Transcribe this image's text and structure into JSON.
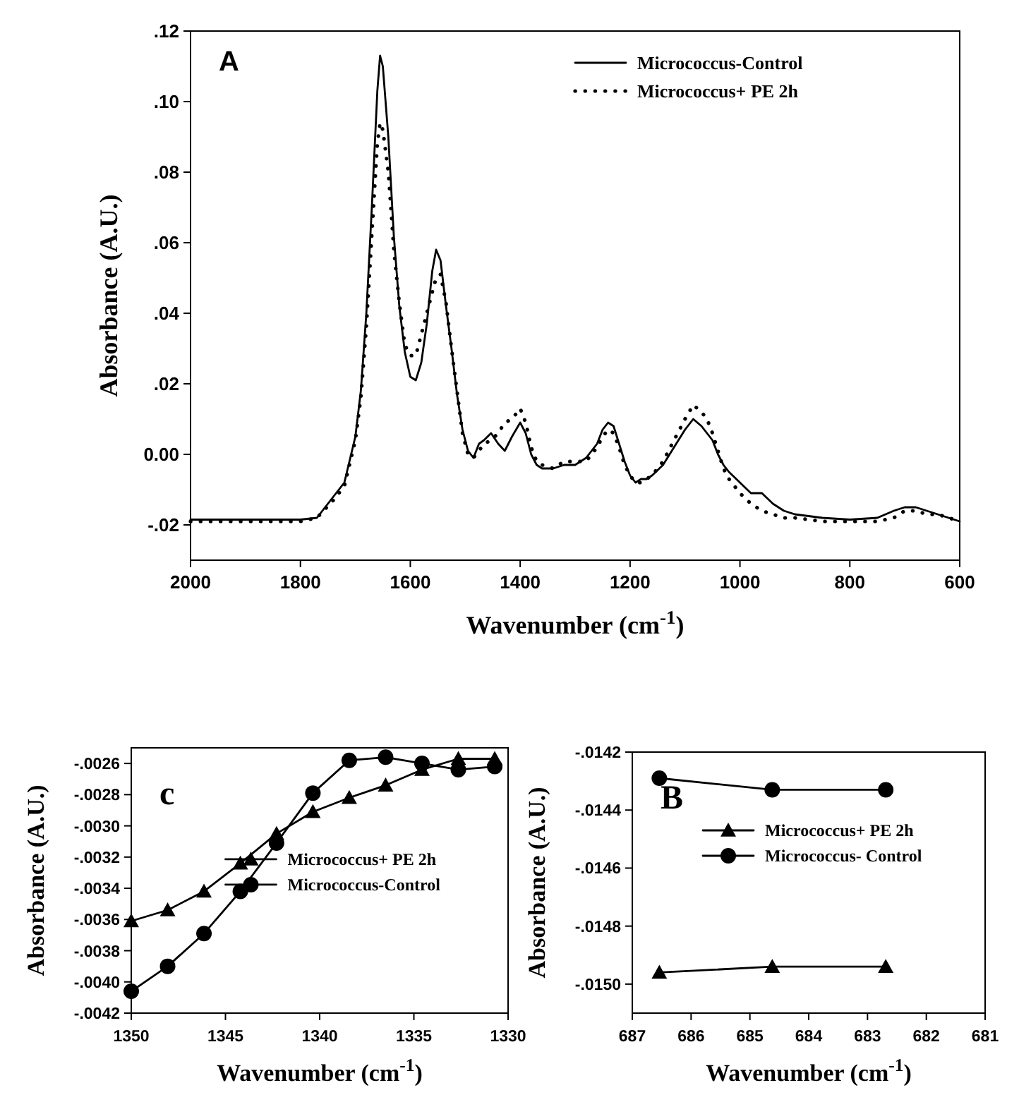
{
  "chart_data": [
    {
      "type": "line",
      "xlabel": "Wavenumber (cm$^{-1}$)",
      "ylabel": "Absorbance (A.U.)",
      "annotations": [
        "A"
      ],
      "legend": "top right",
      "xlim": [
        2000,
        600
      ],
      "ylim": [
        -0.03,
        0.12
      ],
      "xticks": [
        2000,
        1800,
        1600,
        1400,
        1200,
        1000,
        800,
        600
      ],
      "yticks": [
        {
          "value": -0.02,
          "label": "-.02"
        },
        {
          "value": 0,
          "label": "0.00"
        },
        {
          "value": 0.02,
          "label": ".02"
        },
        {
          "value": 0.04,
          "label": ".04"
        },
        {
          "value": 0.06,
          "label": ".06"
        },
        {
          "value": 0.08,
          "label": ".08"
        },
        {
          "value": 0.1,
          "label": ".10"
        },
        {
          "value": 0.12,
          "label": ".12"
        }
      ],
      "x": [
        2000,
        1900,
        1800,
        1770,
        1740,
        1720,
        1700,
        1690,
        1680,
        1670,
        1660,
        1655,
        1650,
        1640,
        1630,
        1620,
        1610,
        1600,
        1590,
        1580,
        1570,
        1560,
        1553,
        1545,
        1535,
        1525,
        1515,
        1505,
        1495,
        1485,
        1475,
        1466,
        1453,
        1440,
        1428,
        1415,
        1400,
        1390,
        1380,
        1370,
        1360,
        1340,
        1320,
        1300,
        1280,
        1260,
        1250,
        1240,
        1230,
        1220,
        1210,
        1200,
        1190,
        1180,
        1170,
        1160,
        1140,
        1120,
        1100,
        1085,
        1070,
        1060,
        1050,
        1040,
        1030,
        1020,
        1000,
        980,
        970,
        960,
        940,
        920,
        900,
        850,
        800,
        750,
        720,
        700,
        680,
        660,
        640,
        620,
        600
      ],
      "series": [
        {
          "name": "Micrococcus-Control",
          "color": "#000000",
          "line_style": "solid",
          "marker": "none",
          "values": [
            -0.0185,
            -0.0185,
            -0.0185,
            -0.018,
            -0.012,
            -0.008,
            0.005,
            0.018,
            0.04,
            0.07,
            0.103,
            0.113,
            0.11,
            0.09,
            0.062,
            0.042,
            0.029,
            0.022,
            0.021,
            0.026,
            0.037,
            0.052,
            0.058,
            0.055,
            0.042,
            0.03,
            0.017,
            0.007,
            0.001,
            -0.001,
            0.003,
            0.004,
            0.006,
            0.003,
            0.001,
            0.005,
            0.009,
            0.006,
            0,
            -0.003,
            -0.004,
            -0.004,
            -0.003,
            -0.003,
            -0.001,
            0.003,
            0.007,
            0.009,
            0.008,
            0.003,
            -0.002,
            -0.006,
            -0.008,
            -0.007,
            -0.007,
            -0.006,
            -0.003,
            0.002,
            0.007,
            0.01,
            0.008,
            0.006,
            0.004,
            0,
            -0.003,
            -0.005,
            -0.008,
            -0.011,
            -0.011,
            -0.011,
            -0.014,
            -0.016,
            -0.017,
            -0.018,
            -0.0185,
            -0.018,
            -0.016,
            -0.015,
            -0.015,
            -0.016,
            -0.017,
            -0.018,
            -0.019
          ]
        },
        {
          "name": "Micrococcus+ PE 2h",
          "color": "#000000",
          "line_style": "dotted",
          "marker": "none",
          "values": [
            -0.019,
            -0.019,
            -0.019,
            -0.018,
            -0.013,
            -0.009,
            0.004,
            0.016,
            0.036,
            0.062,
            0.088,
            0.094,
            0.092,
            0.08,
            0.058,
            0.043,
            0.031,
            0.028,
            0.028,
            0.034,
            0.04,
            0.046,
            0.05,
            0.051,
            0.043,
            0.03,
            0.018,
            0.006,
            0,
            -0.001,
            0.001,
            0.003,
            0.004,
            0.006,
            0.009,
            0.01,
            0.013,
            0.009,
            0.002,
            -0.002,
            -0.003,
            -0.004,
            -0.002,
            -0.002,
            -0.002,
            0.002,
            0.005,
            0.007,
            0.006,
            0.002,
            -0.003,
            -0.006,
            -0.008,
            -0.008,
            -0.007,
            -0.006,
            -0.002,
            0.004,
            0.01,
            0.014,
            0.012,
            0.01,
            0.006,
            0.001,
            -0.004,
            -0.007,
            -0.011,
            -0.014,
            -0.015,
            -0.016,
            -0.017,
            -0.018,
            -0.018,
            -0.019,
            -0.019,
            -0.019,
            -0.018,
            -0.016,
            -0.016,
            -0.017,
            -0.017,
            -0.018,
            -0.019
          ]
        }
      ]
    },
    {
      "type": "line",
      "xlabel": "Wavenumber (cm$^{-1}$)",
      "ylabel": "Absorbance (A.U.)",
      "annotations": [
        "c"
      ],
      "legend": "right",
      "xlim": [
        1350,
        1330
      ],
      "ylim": [
        -0.0042,
        -0.0025
      ],
      "xticks": [
        1350,
        1345,
        1340,
        1335,
        1330
      ],
      "yticks": [
        {
          "value": -0.0042,
          "label": "-.0042"
        },
        {
          "value": -0.004,
          "label": "-.0040"
        },
        {
          "value": -0.0038,
          "label": "-.0038"
        },
        {
          "value": -0.0036,
          "label": "-.0036"
        },
        {
          "value": -0.0034,
          "label": "-.0034"
        },
        {
          "value": -0.0032,
          "label": "-.0032"
        },
        {
          "value": -0.003,
          "label": "-.0030"
        },
        {
          "value": -0.0028,
          "label": "-.0028"
        },
        {
          "value": -0.0026,
          "label": "-.0026"
        }
      ],
      "x": [
        1350,
        1348.07,
        1346.14,
        1344.21,
        1342.29,
        1340.36,
        1338.43,
        1336.5,
        1334.57,
        1332.64,
        1330.71
      ],
      "series": [
        {
          "name": "Micrococcus+ PE 2h",
          "color": "#000000",
          "line_style": "solid",
          "marker": "triangle",
          "values": [
            -0.00361,
            -0.00354,
            -0.00342,
            -0.00324,
            -0.00305,
            -0.00291,
            -0.00282,
            -0.00274,
            -0.00264,
            -0.00257,
            -0.00257
          ]
        },
        {
          "name": "Micrococcus-Control",
          "color": "#000000",
          "line_style": "solid",
          "marker": "circle",
          "values": [
            -0.00406,
            -0.0039,
            -0.00369,
            -0.00342,
            -0.00311,
            -0.00279,
            -0.00258,
            -0.00256,
            -0.0026,
            -0.00264,
            -0.00262
          ]
        }
      ]
    },
    {
      "type": "line",
      "xlabel": "Wavenumber (cm$^{-1}$)",
      "ylabel": "Absorbance (A.U.)",
      "annotations": [
        "B"
      ],
      "legend": "top",
      "xlim": [
        687,
        681
      ],
      "ylim": [
        -0.0151,
        -0.0142
      ],
      "xticks": [
        687,
        686,
        685,
        684,
        683,
        682,
        681
      ],
      "yticks": [
        {
          "value": -0.015,
          "label": "-.0150"
        },
        {
          "value": -0.0148,
          "label": "-.0148"
        },
        {
          "value": -0.0146,
          "label": "-.0146"
        },
        {
          "value": -0.0144,
          "label": "-.0144"
        },
        {
          "value": -0.0142,
          "label": "-.0142"
        }
      ],
      "x": [
        686.54,
        684.62,
        682.69
      ],
      "series": [
        {
          "name": "Micrococcus+ PE 2h",
          "color": "#000000",
          "line_style": "solid",
          "marker": "triangle",
          "values": [
            -0.01496,
            -0.01494,
            -0.01494
          ]
        },
        {
          "name": "Micrococcus- Control",
          "color": "#000000",
          "line_style": "solid",
          "marker": "circle",
          "values": [
            -0.01429,
            -0.01433,
            -0.01433
          ]
        }
      ]
    }
  ]
}
